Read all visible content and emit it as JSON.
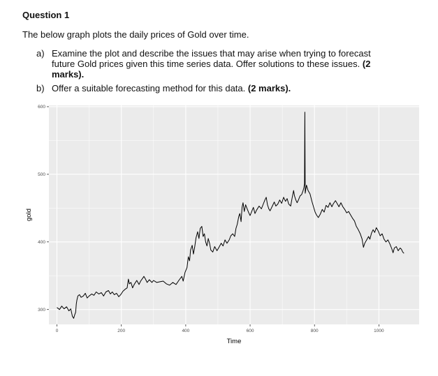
{
  "question": {
    "title": "Question 1",
    "intro": "The below graph plots the daily prices of Gold over time.",
    "items": [
      {
        "label": "a)",
        "text": "Examine the plot and describe the issues that may arise when trying to forecast future Gold prices given this time series data. Offer solutions to these issues.",
        "marks": "(2 marks)."
      },
      {
        "label": "b)",
        "text": "Offer a suitable forecasting method for this data.",
        "marks": "(2 marks)."
      }
    ]
  },
  "colors": {
    "panel_bg": "#ebebeb",
    "grid": "#ffffff",
    "line": "#000000"
  },
  "chart_data": {
    "type": "line",
    "xlabel": "Time",
    "ylabel": "gold",
    "xlim": [
      -25,
      1125
    ],
    "ylim": [
      278,
      602
    ],
    "x_ticks": [
      0,
      200,
      400,
      600,
      800,
      1000
    ],
    "y_ticks": [
      300,
      400,
      500,
      600
    ],
    "grid": true,
    "series": [
      {
        "points": [
          [
            0,
            303
          ],
          [
            8,
            300
          ],
          [
            15,
            305
          ],
          [
            22,
            301
          ],
          [
            30,
            304
          ],
          [
            37,
            298
          ],
          [
            43,
            301
          ],
          [
            48,
            290
          ],
          [
            52,
            287
          ],
          [
            55,
            292
          ],
          [
            58,
            296
          ],
          [
            60,
            308
          ],
          [
            62,
            314
          ],
          [
            65,
            320
          ],
          [
            70,
            322
          ],
          [
            75,
            318
          ],
          [
            82,
            320
          ],
          [
            88,
            324
          ],
          [
            94,
            317
          ],
          [
            100,
            320
          ],
          [
            108,
            323
          ],
          [
            115,
            321
          ],
          [
            122,
            326
          ],
          [
            130,
            323
          ],
          [
            138,
            325
          ],
          [
            145,
            320
          ],
          [
            152,
            326
          ],
          [
            160,
            328
          ],
          [
            166,
            323
          ],
          [
            172,
            326
          ],
          [
            178,
            322
          ],
          [
            185,
            324
          ],
          [
            192,
            319
          ],
          [
            198,
            322
          ],
          [
            205,
            327
          ],
          [
            212,
            330
          ],
          [
            218,
            332
          ],
          [
            222,
            345
          ],
          [
            225,
            338
          ],
          [
            230,
            340
          ],
          [
            235,
            332
          ],
          [
            240,
            337
          ],
          [
            248,
            343
          ],
          [
            255,
            337
          ],
          [
            260,
            342
          ],
          [
            266,
            346
          ],
          [
            270,
            349
          ],
          [
            275,
            345
          ],
          [
            280,
            340
          ],
          [
            287,
            344
          ],
          [
            295,
            340
          ],
          [
            300,
            343
          ],
          [
            310,
            340
          ],
          [
            320,
            341
          ],
          [
            330,
            342
          ],
          [
            340,
            338
          ],
          [
            350,
            336
          ],
          [
            360,
            340
          ],
          [
            370,
            337
          ],
          [
            380,
            344
          ],
          [
            388,
            349
          ],
          [
            392,
            342
          ],
          [
            398,
            355
          ],
          [
            404,
            362
          ],
          [
            408,
            378
          ],
          [
            412,
            372
          ],
          [
            415,
            388
          ],
          [
            420,
            395
          ],
          [
            424,
            382
          ],
          [
            428,
            393
          ],
          [
            432,
            406
          ],
          [
            437,
            415
          ],
          [
            441,
            405
          ],
          [
            445,
            420
          ],
          [
            450,
            423
          ],
          [
            454,
            408
          ],
          [
            458,
            412
          ],
          [
            462,
            400
          ],
          [
            466,
            394
          ],
          [
            470,
            405
          ],
          [
            474,
            398
          ],
          [
            478,
            388
          ],
          [
            484,
            385
          ],
          [
            490,
            393
          ],
          [
            497,
            387
          ],
          [
            502,
            391
          ],
          [
            510,
            398
          ],
          [
            516,
            394
          ],
          [
            522,
            403
          ],
          [
            528,
            398
          ],
          [
            535,
            403
          ],
          [
            540,
            409
          ],
          [
            546,
            412
          ],
          [
            552,
            408
          ],
          [
            556,
            420
          ],
          [
            560,
            426
          ],
          [
            565,
            438
          ],
          [
            568,
            442
          ],
          [
            572,
            430
          ],
          [
            575,
            451
          ],
          [
            578,
            458
          ],
          [
            582,
            445
          ],
          [
            586,
            455
          ],
          [
            590,
            450
          ],
          [
            595,
            444
          ],
          [
            600,
            439
          ],
          [
            605,
            445
          ],
          [
            610,
            451
          ],
          [
            615,
            442
          ],
          [
            620,
            447
          ],
          [
            628,
            453
          ],
          [
            635,
            449
          ],
          [
            640,
            455
          ],
          [
            646,
            462
          ],
          [
            650,
            466
          ],
          [
            654,
            455
          ],
          [
            658,
            449
          ],
          [
            662,
            446
          ],
          [
            668,
            452
          ],
          [
            675,
            459
          ],
          [
            680,
            453
          ],
          [
            686,
            456
          ],
          [
            692,
            462
          ],
          [
            698,
            457
          ],
          [
            704,
            466
          ],
          [
            710,
            460
          ],
          [
            715,
            464
          ],
          [
            720,
            456
          ],
          [
            726,
            453
          ],
          [
            730,
            464
          ],
          [
            735,
            476
          ],
          [
            738,
            468
          ],
          [
            742,
            462
          ],
          [
            746,
            458
          ],
          [
            750,
            462
          ],
          [
            755,
            468
          ],
          [
            760,
            470
          ],
          [
            764,
            475
          ],
          [
            767,
            480
          ],
          [
            769,
            486
          ],
          [
            770,
            592
          ],
          [
            771,
            472
          ],
          [
            775,
            484
          ],
          [
            780,
            476
          ],
          [
            786,
            471
          ],
          [
            792,
            460
          ],
          [
            797,
            452
          ],
          [
            802,
            444
          ],
          [
            806,
            440
          ],
          [
            812,
            436
          ],
          [
            818,
            441
          ],
          [
            824,
            448
          ],
          [
            830,
            444
          ],
          [
            836,
            454
          ],
          [
            842,
            451
          ],
          [
            848,
            458
          ],
          [
            854,
            452
          ],
          [
            858,
            456
          ],
          [
            865,
            461
          ],
          [
            870,
            457
          ],
          [
            876,
            452
          ],
          [
            882,
            458
          ],
          [
            888,
            452
          ],
          [
            894,
            448
          ],
          [
            900,
            443
          ],
          [
            906,
            445
          ],
          [
            912,
            440
          ],
          [
            918,
            435
          ],
          [
            924,
            431
          ],
          [
            930,
            423
          ],
          [
            936,
            418
          ],
          [
            942,
            412
          ],
          [
            948,
            404
          ],
          [
            950,
            398
          ],
          [
            952,
            392
          ],
          [
            956,
            398
          ],
          [
            962,
            403
          ],
          [
            968,
            408
          ],
          [
            972,
            404
          ],
          [
            977,
            413
          ],
          [
            982,
            418
          ],
          [
            987,
            414
          ],
          [
            992,
            421
          ],
          [
            998,
            416
          ],
          [
            1004,
            409
          ],
          [
            1010,
            412
          ],
          [
            1016,
            404
          ],
          [
            1022,
            400
          ],
          [
            1028,
            403
          ],
          [
            1034,
            397
          ],
          [
            1040,
            390
          ],
          [
            1044,
            384
          ],
          [
            1048,
            391
          ],
          [
            1054,
            393
          ],
          [
            1060,
            387
          ],
          [
            1066,
            391
          ],
          [
            1070,
            389
          ],
          [
            1074,
            385
          ],
          [
            1078,
            383
          ]
        ]
      }
    ]
  }
}
